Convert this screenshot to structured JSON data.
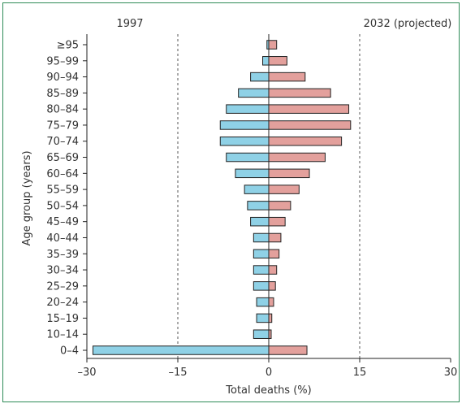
{
  "chart_data": {
    "type": "bar",
    "orientation": "horizontal",
    "layout": "butterfly",
    "categories": [
      "0–4",
      "10–14",
      "15–19",
      "20–24",
      "25–29",
      "30–34",
      "35–39",
      "40–44",
      "45–49",
      "50–54",
      "55–59",
      "60–64",
      "65–69",
      "70–74",
      "75–79",
      "80–84",
      "85–89",
      "90–94",
      "95–99",
      "≥95"
    ],
    "series": [
      {
        "name": "1997",
        "color": "#8fd1e6",
        "values": [
          -29,
          -2.5,
          -2,
          -2,
          -2.5,
          -2.5,
          -2.5,
          -2.5,
          -3,
          -3.5,
          -4,
          -5.5,
          -7,
          -8,
          -8,
          -7,
          -5,
          -3,
          -1,
          -0.3
        ]
      },
      {
        "name": "2032 (projected)",
        "color": "#e3a09c",
        "values": [
          6.3,
          0.4,
          0.5,
          0.8,
          1.1,
          1.3,
          1.7,
          2,
          2.7,
          3.6,
          5,
          6.7,
          9.3,
          12,
          13.5,
          13.2,
          10.2,
          6,
          3,
          1.3
        ]
      }
    ],
    "xlabel": "Total deaths (%)",
    "ylabel": "Age group (years)",
    "xlim": [
      -30,
      30
    ],
    "xticks": [
      -30,
      -15,
      0,
      15,
      30
    ],
    "xtick_labels": [
      "–30",
      "–15",
      "0",
      "15",
      "30"
    ],
    "reference_lines": [
      -15,
      15
    ],
    "reference_line_style": "dashed",
    "grid": false,
    "legend": "series names printed at top-left and top-right"
  }
}
